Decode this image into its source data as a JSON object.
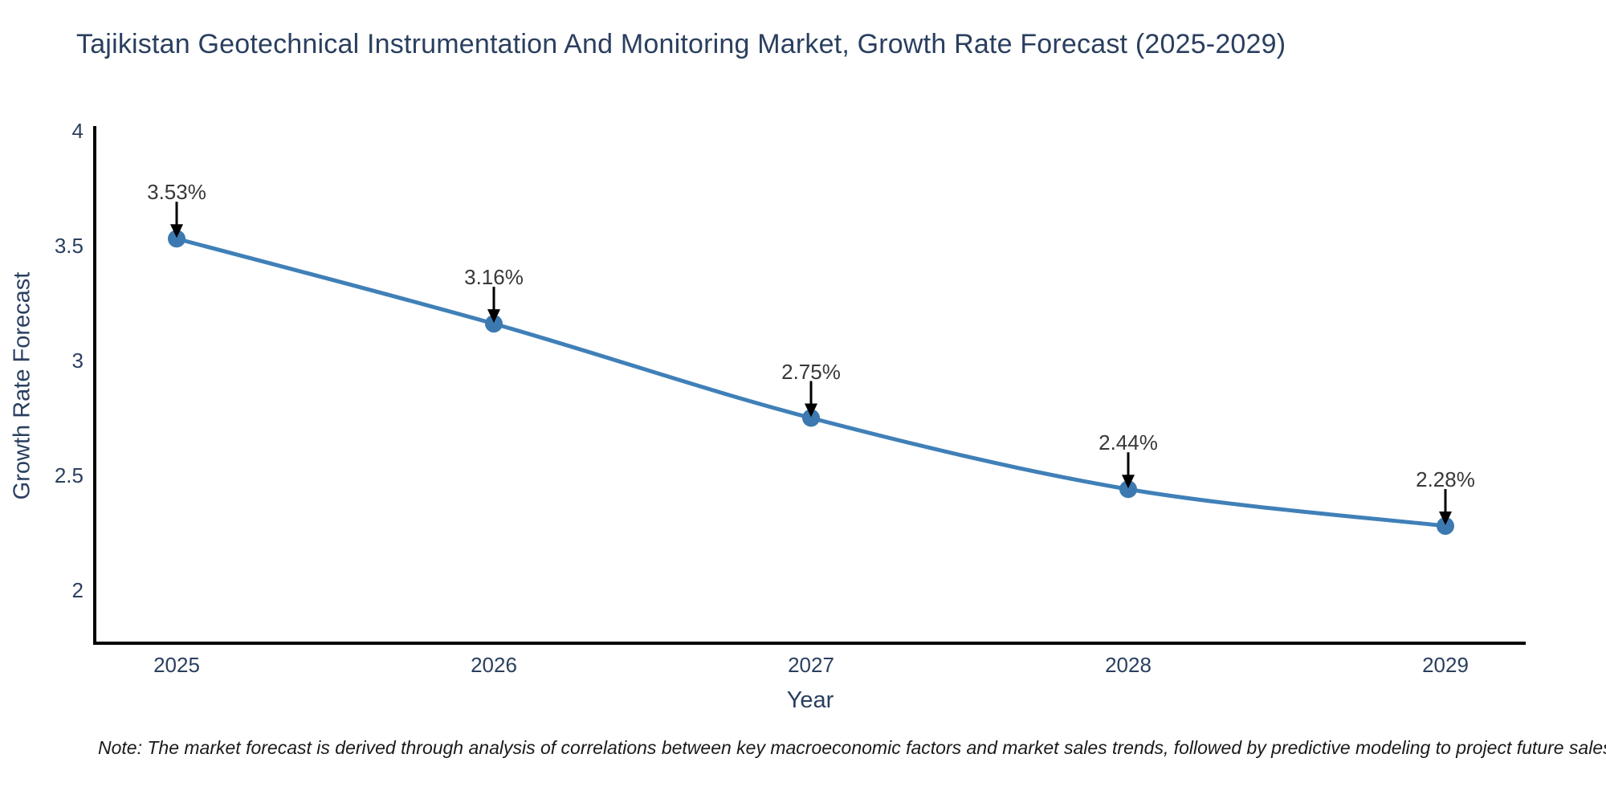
{
  "page": {
    "background": "#ffffff"
  },
  "chart_data": {
    "type": "line",
    "title": "Tajikistan Geotechnical Instrumentation And Monitoring Market, Growth Rate Forecast (2025-2029)",
    "xlabel": "Year",
    "ylabel": "Growth Rate Forecast",
    "categories": [
      "2025",
      "2026",
      "2027",
      "2028",
      "2029"
    ],
    "values": [
      3.53,
      3.16,
      2.75,
      2.44,
      2.28
    ],
    "point_labels": [
      "3.53%",
      "3.16%",
      "2.75%",
      "2.44%",
      "2.28%"
    ],
    "y_ticks": [
      2,
      2.5,
      3,
      3.5,
      4
    ],
    "y_tick_labels": [
      "2",
      "2.5",
      "3",
      "3.5",
      "4"
    ],
    "ylim": [
      1.77,
      4.02
    ],
    "grid": false,
    "legend": "none",
    "smooth": true,
    "colors": {
      "line": "#4080b8",
      "marker": "#3c79b0",
      "axis": "#000000",
      "annotation_text": "#383838",
      "annotation_arrow": "#000000",
      "tick_text": "#2a3f5f",
      "title_text": "#2a3f5f"
    }
  },
  "note": {
    "text": "Note: The market forecast is derived through analysis of correlations between key macroeconomic factors and market sales trends, followed by predictive modeling to project future sales"
  }
}
